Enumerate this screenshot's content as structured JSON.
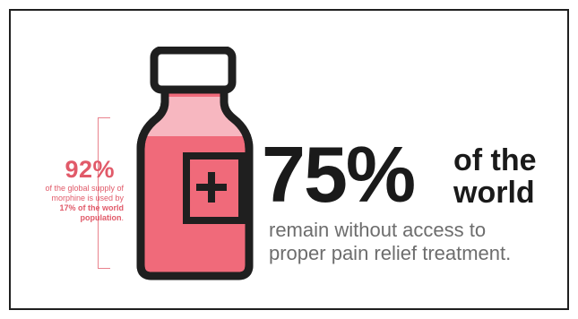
{
  "stat": {
    "percent": "92%",
    "line1": "of the global supply of",
    "line2": "morphine is used by",
    "highlight": "17% of the world",
    "line3": "population",
    "period": "."
  },
  "headline": {
    "big_percent": "75%",
    "of_the": "of the",
    "world": "world"
  },
  "subtitle": {
    "line1": "remain without access to",
    "line2": "proper pain relief treatment."
  },
  "colors": {
    "accent_red": "#e15a69",
    "bottle_fill": "#f06a7a",
    "bottle_highlight": "#f7b7c0",
    "outline": "#1f1f1f",
    "body_text": "#6d6d6d"
  },
  "icons": {
    "bottle": "medicine-bottle-icon",
    "cross": "plus-cross-icon"
  }
}
